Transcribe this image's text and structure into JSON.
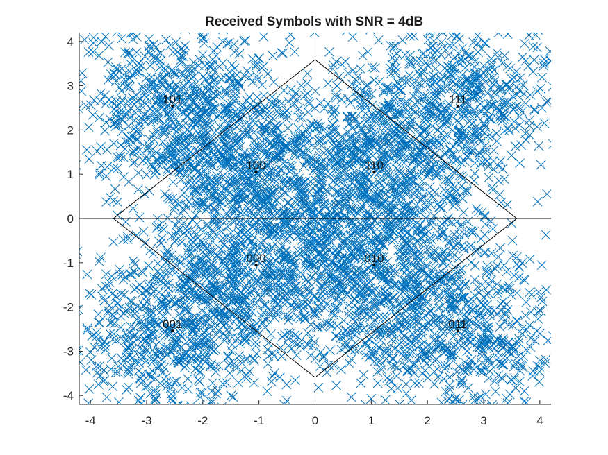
{
  "chart_data": {
    "type": "scatter",
    "title": "Received Symbols with SNR = 4dB",
    "xlabel": "",
    "ylabel": "",
    "xlim": [
      -4.2,
      4.2
    ],
    "ylim": [
      -4.2,
      4.2
    ],
    "x_ticks": [
      "-4",
      "-3",
      "-2",
      "-1",
      "0",
      "1",
      "2",
      "3",
      "4"
    ],
    "y_ticks": [
      "4",
      "3",
      "2",
      "1",
      "0",
      "-1",
      "-2",
      "-3",
      "-4"
    ],
    "marker_color": "#0072BD",
    "marker": "x",
    "constellation_points": [
      {
        "label": "101",
        "x": -2.54,
        "y": 2.54
      },
      {
        "label": "100",
        "x": -1.05,
        "y": 1.05
      },
      {
        "label": "110",
        "x": 1.05,
        "y": 1.05
      },
      {
        "label": "111",
        "x": 2.54,
        "y": 2.54
      },
      {
        "label": "000",
        "x": -1.05,
        "y": -1.05
      },
      {
        "label": "010",
        "x": 1.05,
        "y": -1.05
      },
      {
        "label": "001",
        "x": -2.54,
        "y": -2.54
      },
      {
        "label": "011",
        "x": 2.54,
        "y": -2.54
      }
    ],
    "decision_boundary_diamond": [
      [
        0,
        3.59
      ],
      [
        3.59,
        0
      ],
      [
        0,
        -3.59
      ],
      [
        -3.59,
        0
      ]
    ],
    "axis_lines": {
      "x": 0,
      "y": 0
    },
    "noise_sigma": 0.95
  }
}
